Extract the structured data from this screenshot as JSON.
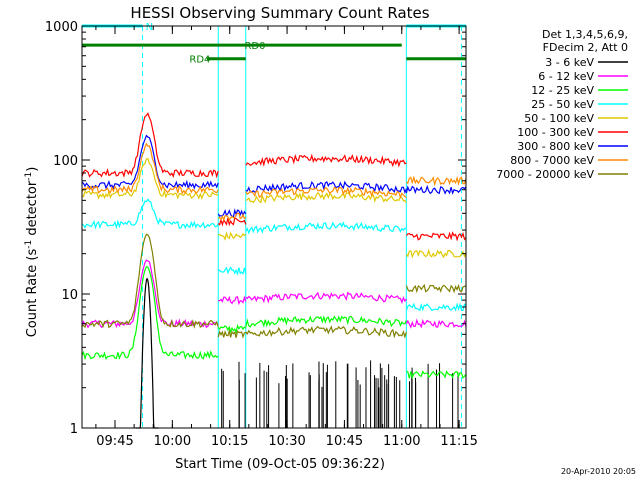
{
  "chart_data": {
    "type": "line",
    "title": "HESSI Observing Summary Count Rates",
    "xlabel": "Start Time (09-Oct-05 09:36:22)",
    "ylabel_main": "Count Rate (s",
    "ylabel_sup1": "-1",
    "ylabel_mid": " detector",
    "ylabel_sup2": "-1",
    "ylabel_end": ")",
    "footer": "20-Apr-2010 20:05",
    "yscale": "log",
    "ylim": [
      1,
      1000
    ],
    "xlim": [
      9.6061,
      11.28
    ],
    "y_ticks": [
      {
        "v": 1,
        "label": "1"
      },
      {
        "v": 10,
        "label": "10"
      },
      {
        "v": 100,
        "label": "100"
      },
      {
        "v": 1000,
        "label": "1000"
      }
    ],
    "x_ticks": [
      {
        "v": 9.75,
        "label": "09:45"
      },
      {
        "v": 10.0,
        "label": "10:00"
      },
      {
        "v": 10.25,
        "label": "10:15"
      },
      {
        "v": 10.5,
        "label": "10:30"
      },
      {
        "v": 10.75,
        "label": "10:45"
      },
      {
        "v": 11.0,
        "label": "11:00"
      },
      {
        "v": 11.25,
        "label": "11:15"
      }
    ],
    "legend_header": [
      "Det 1,3,4,5,6,9,",
      "FDecim 2, Att 0"
    ],
    "legend_position": "right",
    "series": [
      {
        "name": "3 - 6 keV",
        "color": "#000000"
      },
      {
        "name": "6 - 12 keV",
        "color": "#ff00ff"
      },
      {
        "name": "12 - 25 keV",
        "color": "#00ff00"
      },
      {
        "name": "25 - 50 keV",
        "color": "#00ffff"
      },
      {
        "name": "50 - 100 keV",
        "color": "#e0c800"
      },
      {
        "name": "100 - 300 keV",
        "color": "#ff0000"
      },
      {
        "name": "300 - 800 keV",
        "color": "#0000ff"
      },
      {
        "name": "800 - 7000 keV",
        "color": "#ff8c00"
      },
      {
        "name": "7000 - 20000 keV",
        "color": "#808000"
      }
    ],
    "flag_bars": [
      {
        "label": "N",
        "color": "#00ffff",
        "y": 1000,
        "segments": [
          [
            9.6061,
            9.87
          ],
          [
            11.02,
            11.28
          ]
        ]
      },
      {
        "label": "RD0",
        "color": "#008000",
        "y": 720,
        "segments": [
          [
            9.6061,
            11.0
          ]
        ]
      },
      {
        "label": "RD4",
        "color": "#008000",
        "y": 570,
        "segments": [
          [
            10.15,
            10.32
          ],
          [
            11.02,
            11.28
          ]
        ]
      }
    ],
    "vertical_markers": [
      {
        "x": 9.87,
        "color": "#00ffff",
        "style": "dashed"
      },
      {
        "x": 10.2,
        "color": "#00ffff",
        "style": "solid"
      },
      {
        "x": 10.32,
        "color": "#00ffff",
        "style": "solid"
      },
      {
        "x": 11.02,
        "color": "#00ffff",
        "style": "solid"
      },
      {
        "x": 11.26,
        "color": "#00ffff",
        "style": "dashed"
      }
    ],
    "grid": false,
    "segment_breaks": [
      9.6061,
      10.2,
      10.32,
      11.02,
      11.28
    ],
    "series_levels": [
      {
        "name": "3 - 6 keV",
        "sparse": true,
        "peak": {
          "x": 9.89,
          "y": 13
        }
      },
      {
        "name": "6 - 12 keV",
        "levels": [
          6,
          9,
          9,
          6
        ],
        "peak": {
          "x": 9.89,
          "y": 18
        }
      },
      {
        "name": "12 - 25 keV",
        "levels": [
          3.5,
          5.5,
          6,
          2.5
        ],
        "peak": {
          "x": 9.89,
          "y": 16
        }
      },
      {
        "name": "25 - 50 keV",
        "levels": [
          33,
          15,
          30,
          8
        ],
        "peak": {
          "x": 9.89,
          "y": 50
        }
      },
      {
        "name": "50 - 100 keV",
        "levels": [
          55,
          27,
          50,
          20
        ],
        "peak": {
          "x": 9.89,
          "y": 100
        }
      },
      {
        "name": "100 - 300 keV",
        "levels": [
          80,
          35,
          95,
          27
        ],
        "peak": {
          "x": 9.89,
          "y": 220
        }
      },
      {
        "name": "300 - 800 keV",
        "levels": [
          65,
          40,
          60,
          60
        ],
        "peak": {
          "x": 9.89,
          "y": 150
        }
      },
      {
        "name": "800 - 7000 keV",
        "levels": [
          60,
          38,
          55,
          70
        ],
        "peak": {
          "x": 9.89,
          "y": 130
        }
      },
      {
        "name": "7000 - 20000 keV",
        "levels": [
          6,
          5,
          5,
          11
        ],
        "peak": {
          "x": 9.89,
          "y": 28
        }
      }
    ]
  }
}
